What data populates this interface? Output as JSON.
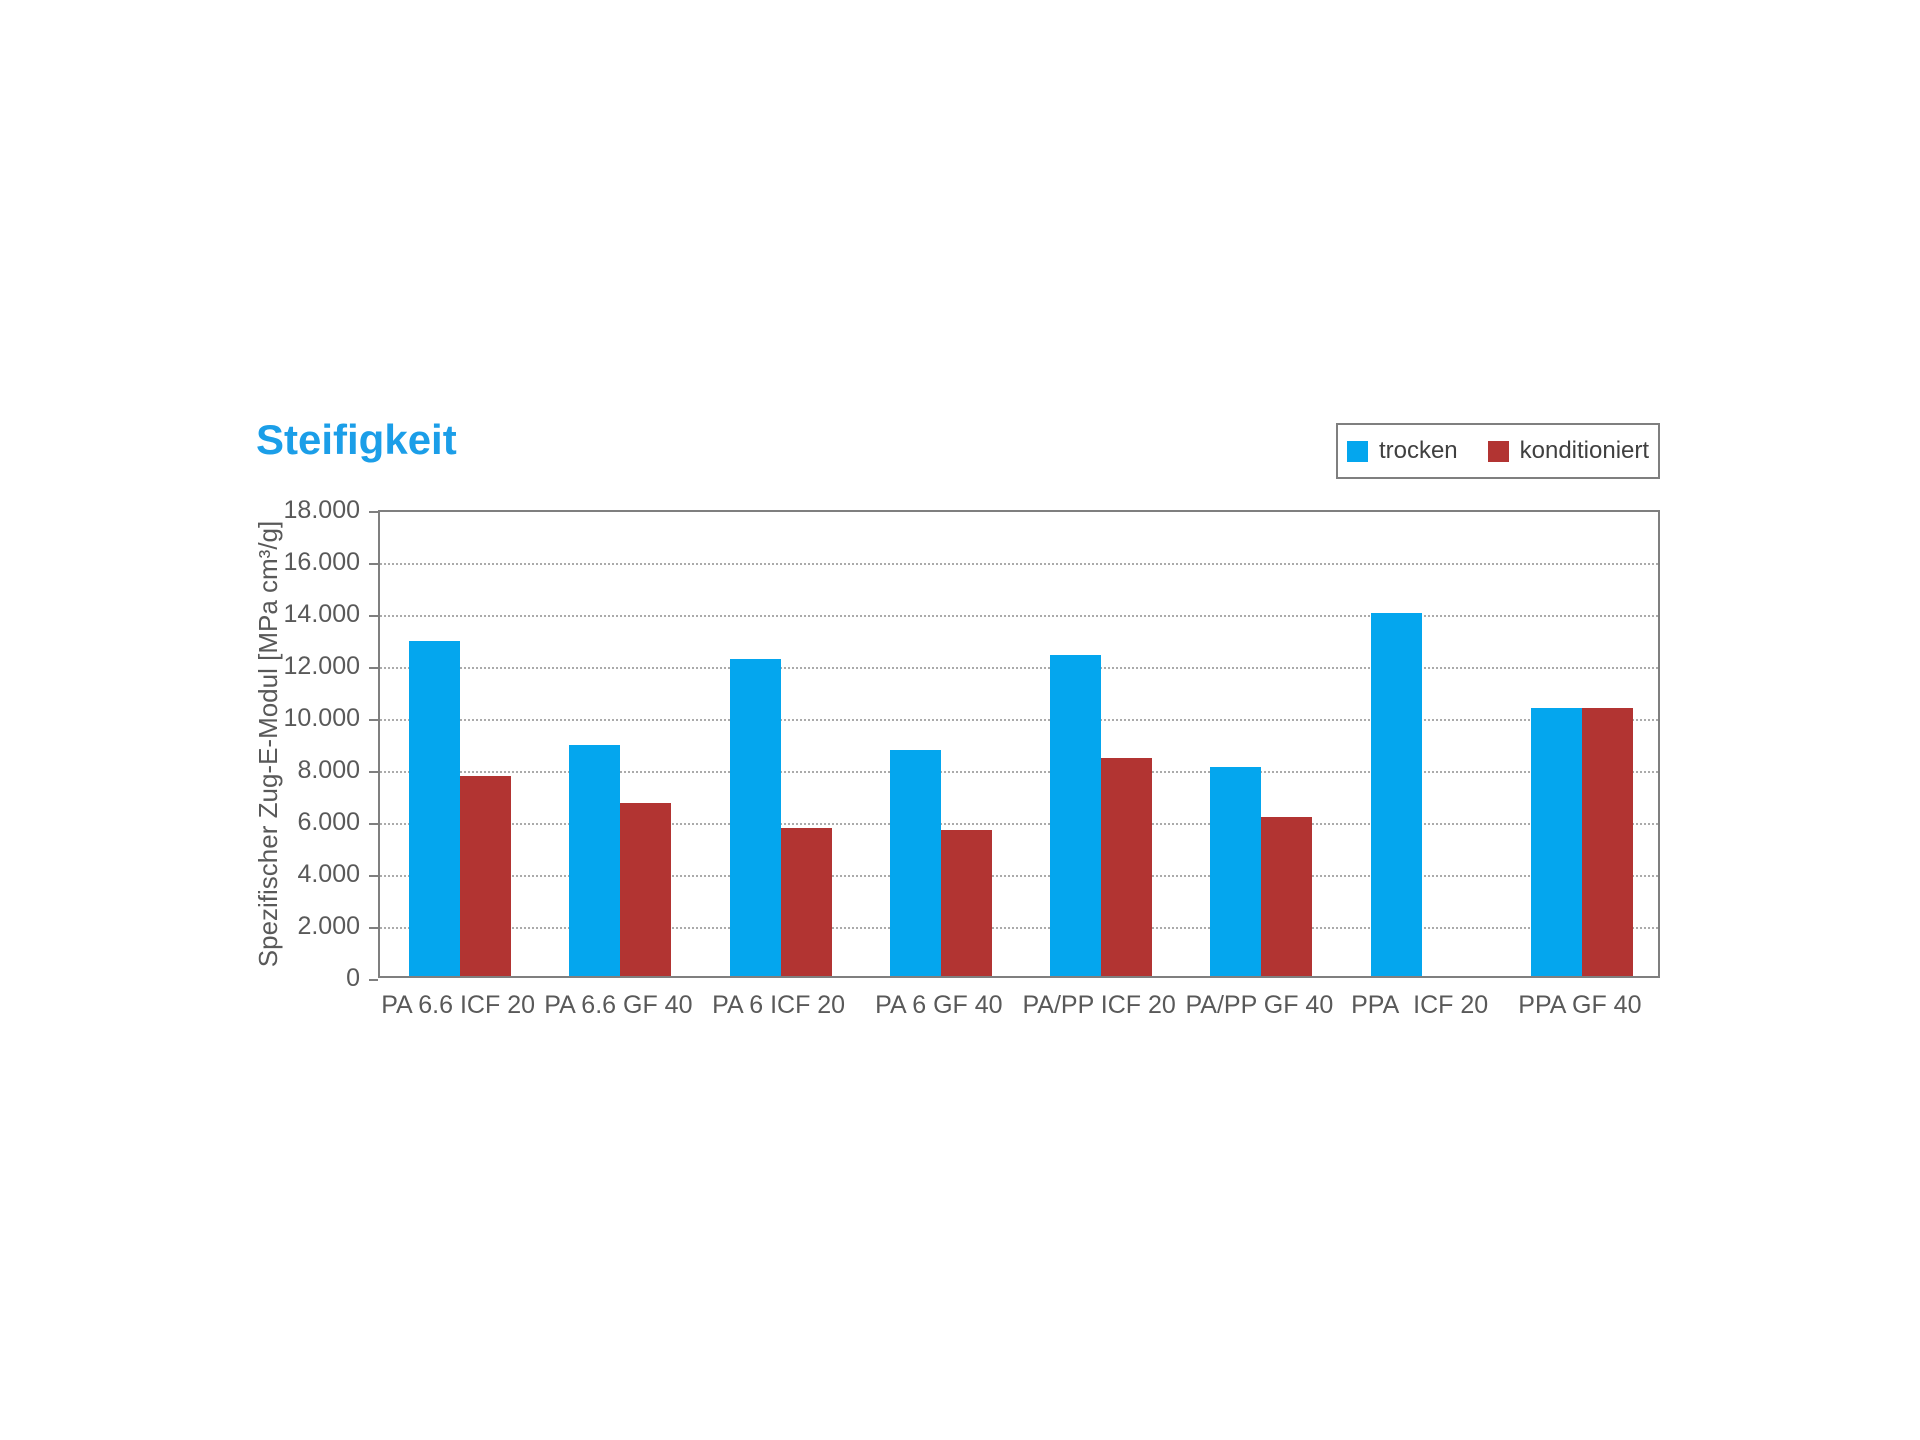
{
  "chart_data": {
    "type": "bar",
    "title": "Steifigkeit",
    "ylabel": "Spezifischer Zug-E-Modul  [MPa cm³/g]",
    "xlabel": "",
    "ylim": [
      0,
      18000
    ],
    "ytick_step": 2000,
    "ytick_labels": [
      "18.000",
      "16.000",
      "14.000",
      "12.000",
      "10.000",
      "8.000",
      "6.000",
      "4.000",
      "2.000",
      "0"
    ],
    "grid": "horizontal-dotted",
    "legend_position": "top-right",
    "categories": [
      "PA 6.6 ICF 20",
      "PA 6.6 GF 40",
      "PA 6 ICF 20",
      "PA 6 GF 40",
      "PA/PP ICF 20",
      "PA/PP GF 40",
      "PPA  ICF 20",
      "PPA GF 40"
    ],
    "series": [
      {
        "name": "trocken",
        "color": "#04A6EE",
        "values": [
          12900,
          8900,
          12200,
          8700,
          12350,
          8050,
          13950,
          10300
        ]
      },
      {
        "name": "konditioniert",
        "color": "#B23432",
        "values": [
          7700,
          6650,
          5700,
          5600,
          8400,
          6100,
          null,
          10300
        ]
      }
    ]
  },
  "colors": {
    "title": "#1B9EE8",
    "axis_text": "#595959",
    "legend_text": "#404040",
    "plot_border": "#7f7f7f",
    "gridline": "#ababab",
    "background": "#ffffff"
  }
}
